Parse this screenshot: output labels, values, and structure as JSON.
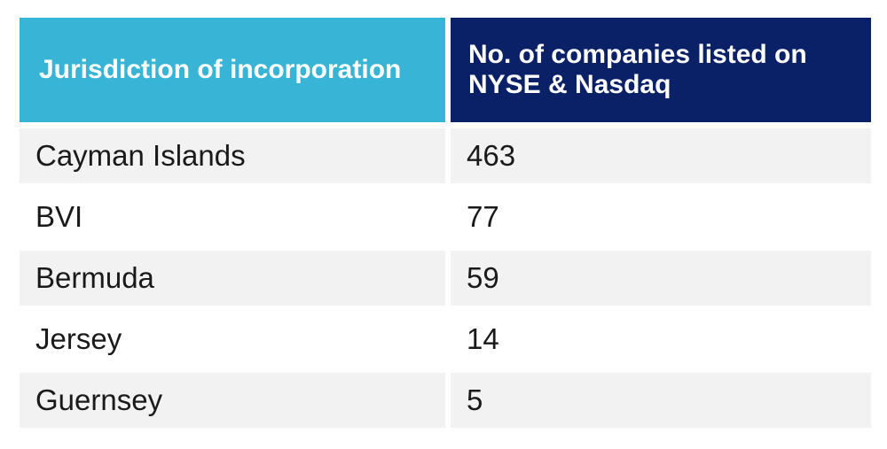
{
  "chart_data": {
    "type": "table",
    "columns": [
      "Jurisdiction of incorporation",
      "No. of companies listed on NYSE & Nasdaq"
    ],
    "rows": [
      [
        "Cayman Islands",
        "463"
      ],
      [
        "BVI",
        "77"
      ],
      [
        "Bermuda",
        "59"
      ],
      [
        "Jersey",
        "14"
      ],
      [
        "Guernsey",
        "5"
      ]
    ]
  },
  "colors": {
    "header_left_bg": "#38B4D6",
    "header_right_bg": "#0A2167",
    "header_text": "#FFFFFF",
    "row_alt_bg": "#F2F2F2",
    "row_bg": "#FFFFFF",
    "body_text": "#1A1A1A",
    "page_bg": "#FFFFFF"
  }
}
